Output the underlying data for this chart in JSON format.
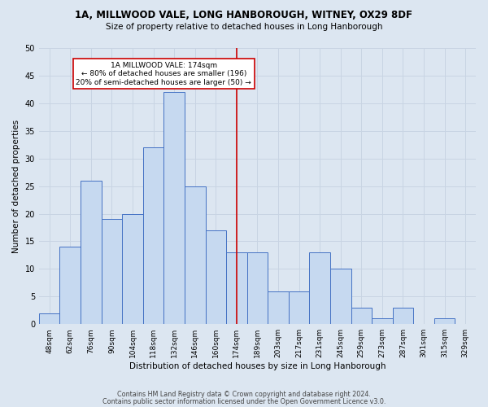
{
  "title1": "1A, MILLWOOD VALE, LONG HANBOROUGH, WITNEY, OX29 8DF",
  "title2": "Size of property relative to detached houses in Long Hanborough",
  "xlabel": "Distribution of detached houses by size in Long Hanborough",
  "ylabel": "Number of detached properties",
  "categories": [
    "48sqm",
    "62sqm",
    "76sqm",
    "90sqm",
    "104sqm",
    "118sqm",
    "132sqm",
    "146sqm",
    "160sqm",
    "174sqm",
    "189sqm",
    "203sqm",
    "217sqm",
    "231sqm",
    "245sqm",
    "259sqm",
    "273sqm",
    "287sqm",
    "301sqm",
    "315sqm",
    "329sqm"
  ],
  "values": [
    2,
    14,
    26,
    19,
    20,
    32,
    42,
    25,
    17,
    13,
    13,
    6,
    6,
    13,
    10,
    3,
    1,
    3,
    0,
    1,
    0
  ],
  "bar_color": "#c6d9f0",
  "bar_edge_color": "#4472c4",
  "vline_x_index": 9,
  "vline_color": "#cc0000",
  "annotation_text": "1A MILLWOOD VALE: 174sqm\n← 80% of detached houses are smaller (196)\n20% of semi-detached houses are larger (50) →",
  "annotation_box_color": "#ffffff",
  "annotation_box_edge_color": "#cc0000",
  "ylim": [
    0,
    50
  ],
  "yticks": [
    0,
    5,
    10,
    15,
    20,
    25,
    30,
    35,
    40,
    45,
    50
  ],
  "grid_color": "#c8d4e3",
  "bg_color": "#dce6f1",
  "footer1": "Contains HM Land Registry data © Crown copyright and database right 2024.",
  "footer2": "Contains public sector information licensed under the Open Government Licence v3.0."
}
